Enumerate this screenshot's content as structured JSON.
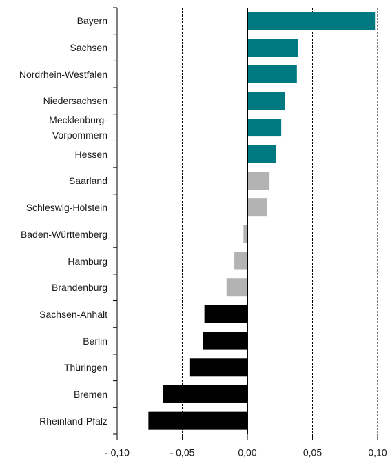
{
  "chart_data": {
    "type": "bar",
    "orientation": "horizontal",
    "categories": [
      "Bayern",
      "Sachsen",
      "Nordrhein-Westfalen",
      "Niedersachsen",
      "Mecklenburg-\nVorpommern",
      "Hessen",
      "Saarland",
      "Schleswig-Holstein",
      "Baden-Württemberg",
      "Hamburg",
      "Brandenburg",
      "Sachsen-Anhalt",
      "Berlin",
      "Thüringen",
      "Bremen",
      "Rheinland-Pfalz"
    ],
    "values": [
      0.098,
      0.039,
      0.038,
      0.029,
      0.026,
      0.022,
      0.017,
      0.015,
      -0.003,
      -0.01,
      -0.016,
      -0.033,
      -0.034,
      -0.044,
      -0.065,
      -0.076
    ],
    "colors": [
      "#007a80",
      "#007a80",
      "#007a80",
      "#007a80",
      "#007a80",
      "#007a80",
      "#b3b3b3",
      "#b3b3b3",
      "#b3b3b3",
      "#b3b3b3",
      "#b3b3b3",
      "#000000",
      "#000000",
      "#000000",
      "#000000",
      "#000000"
    ],
    "xlim": [
      -0.1,
      0.1
    ],
    "xticks": [
      {
        "value": -0.1,
        "label": "- 0,10"
      },
      {
        "value": -0.05,
        "label": "- 0,05"
      },
      {
        "value": 0,
        "label": "0,00"
      },
      {
        "value": 0.05,
        "label": "0,05"
      },
      {
        "value": 0.1,
        "label": "0,10"
      }
    ],
    "grid": true
  }
}
